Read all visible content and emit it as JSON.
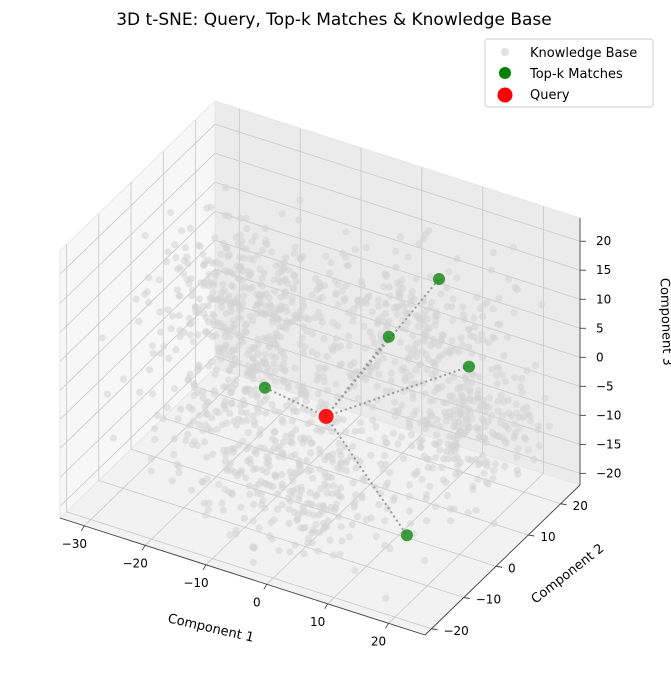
{
  "chart_data": {
    "type": "scatter",
    "title": "3D t-SNE: Query, Top-k Matches & Knowledge Base",
    "xlabel": "Component 1",
    "ylabel": "Component 2",
    "zlabel": "Component 3",
    "xlim": [
      -34,
      26
    ],
    "ylim": [
      -22,
      26
    ],
    "zlim": [
      -22,
      24
    ],
    "x_ticks": [
      -30,
      -20,
      -10,
      0,
      10,
      20
    ],
    "y_ticks": [
      -20,
      -10,
      0,
      10,
      20
    ],
    "z_ticks": [
      -20,
      -15,
      -10,
      -5,
      0,
      5,
      10,
      15,
      20
    ],
    "grid": true,
    "projection": "3d",
    "legend_position": "top-right",
    "series": [
      {
        "name": "Knowledge Base",
        "color": "#d3d3d3",
        "cloud_size": 1400
      },
      {
        "name": "Top-k Matches",
        "color": "#008000",
        "points": [
          {
            "x": -12,
            "y": 0,
            "z": -4
          },
          {
            "x": 14,
            "y": -5,
            "z": -18
          },
          {
            "x": 2,
            "y": 12,
            "z": 3
          },
          {
            "x": 6,
            "y": 20,
            "z": 10
          },
          {
            "x": 12,
            "y": 18,
            "z": -2
          }
        ]
      },
      {
        "name": "Query",
        "color": "#ff0000",
        "points": [
          {
            "x": -3,
            "y": 2,
            "z": -7
          }
        ]
      }
    ],
    "connectors": {
      "style": "dotted",
      "color": "#999999",
      "from": "Query",
      "to": "Top-k Matches"
    }
  }
}
